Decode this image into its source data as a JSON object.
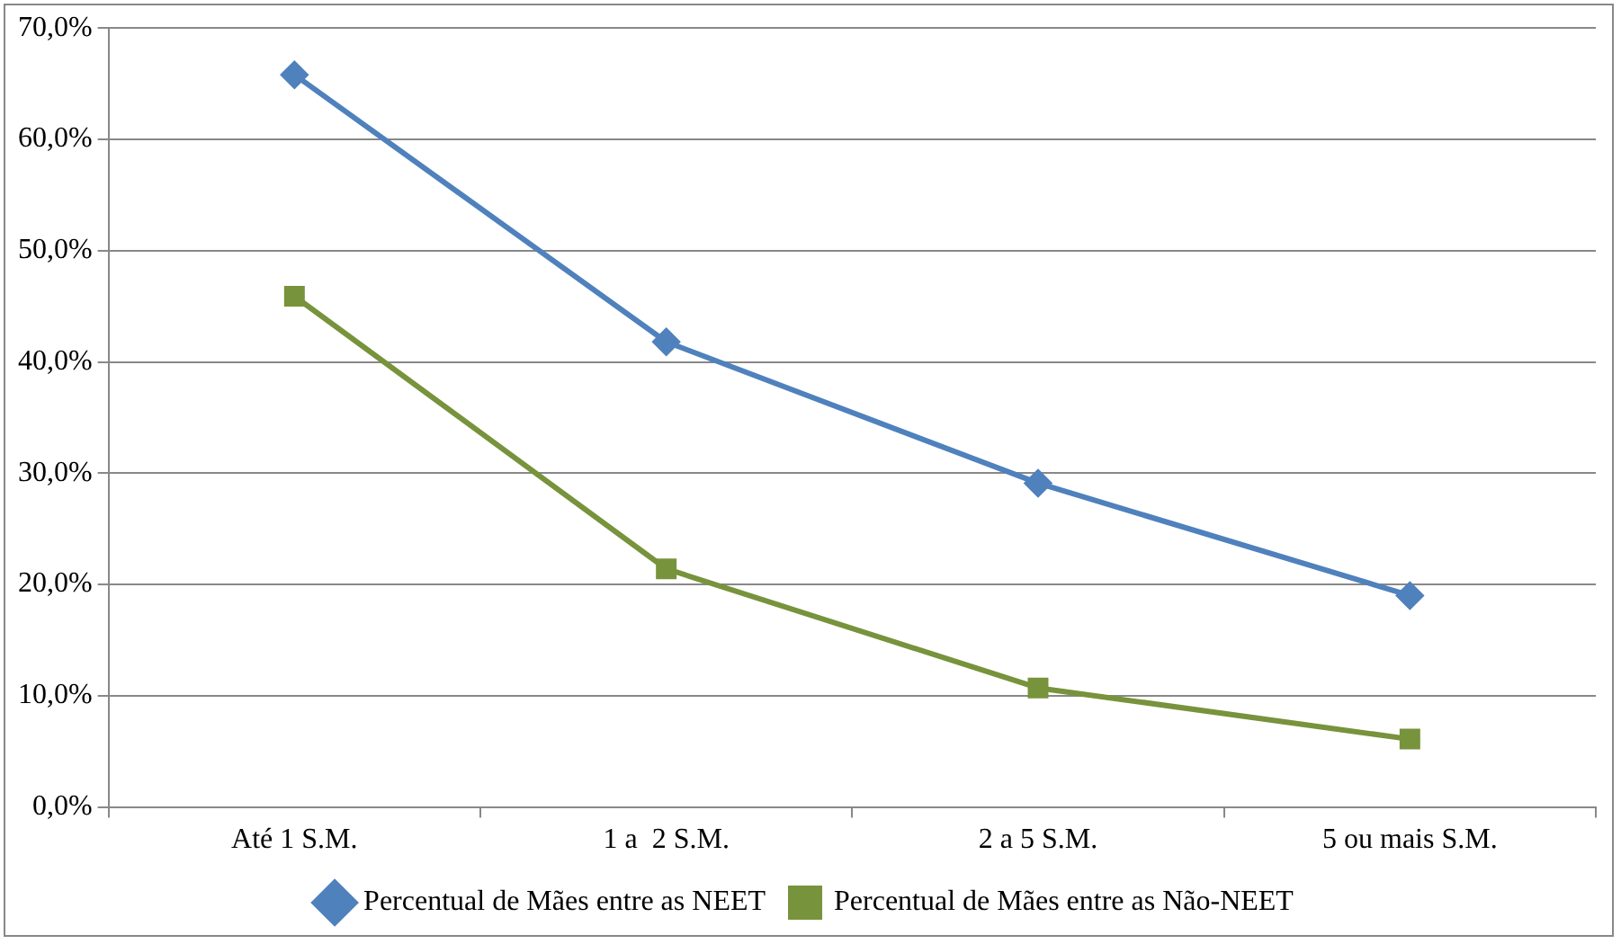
{
  "chart_data": {
    "type": "line",
    "categories": [
      "Até 1 S.M.",
      "1 a  2 S.M.",
      "2 a 5 S.M.",
      "5 ou mais S.M."
    ],
    "series": [
      {
        "name": "Percentual de Mães entre as NEET",
        "color": "#4f81bd",
        "marker": "diamond",
        "values": [
          65.8,
          41.8,
          29.1,
          19.0
        ]
      },
      {
        "name": "Percentual de Mães entre as Não-NEET",
        "color": "#77933c",
        "marker": "square",
        "values": [
          45.9,
          21.4,
          10.7,
          6.1
        ]
      }
    ],
    "ylim": [
      0,
      70
    ],
    "yticks": [
      {
        "value": 0,
        "label": "0,0%"
      },
      {
        "value": 10,
        "label": "10,0%"
      },
      {
        "value": 20,
        "label": "20,0%"
      },
      {
        "value": 30,
        "label": "30,0%"
      },
      {
        "value": 40,
        "label": "40,0%"
      },
      {
        "value": 50,
        "label": "50,0%"
      },
      {
        "value": 60,
        "label": "60,0%"
      },
      {
        "value": 70,
        "label": "70,0%"
      }
    ],
    "grid": "y",
    "legend": "bottom",
    "line_style": "solid"
  }
}
